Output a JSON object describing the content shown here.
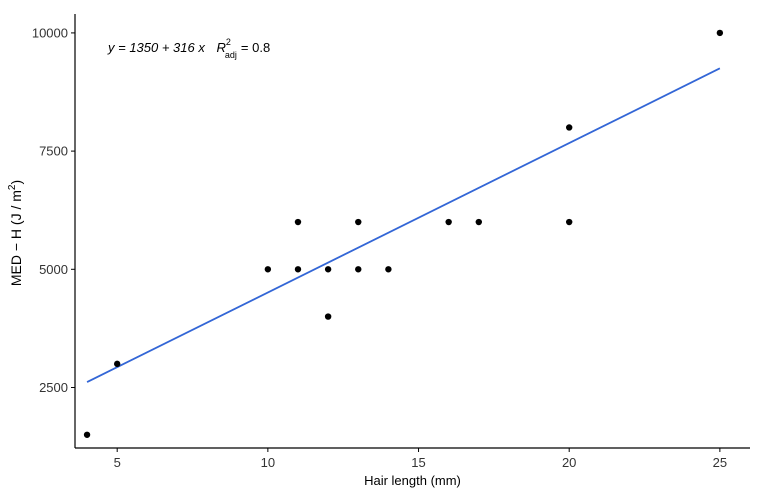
{
  "chart_data": {
    "type": "scatter",
    "title": "",
    "xlabel": "Hair length (mm)",
    "ylabel": "MED − H (J / m²)",
    "ylabel_parts": {
      "main": "MED − H (J / m",
      "sup": "2",
      "close": ")"
    },
    "xlim": [
      3.6,
      26.0
    ],
    "ylim": [
      1220,
      10400
    ],
    "x_ticks": [
      5,
      10,
      15,
      20,
      25
    ],
    "y_ticks": [
      2500,
      5000,
      7500,
      10000
    ],
    "grid": false,
    "legend": "none",
    "points": [
      {
        "x": 4,
        "y": 1500
      },
      {
        "x": 5,
        "y": 3000
      },
      {
        "x": 10,
        "y": 5000
      },
      {
        "x": 11,
        "y": 5000
      },
      {
        "x": 11,
        "y": 6000
      },
      {
        "x": 12,
        "y": 4000
      },
      {
        "x": 12,
        "y": 5000
      },
      {
        "x": 13,
        "y": 5000
      },
      {
        "x": 13,
        "y": 6000
      },
      {
        "x": 14,
        "y": 5000
      },
      {
        "x": 16,
        "y": 6000
      },
      {
        "x": 17,
        "y": 6000
      },
      {
        "x": 20,
        "y": 6000
      },
      {
        "x": 20,
        "y": 8000
      },
      {
        "x": 25,
        "y": 10000
      }
    ],
    "regression": {
      "intercept": 1350,
      "slope": 316,
      "x_from": 4,
      "x_to": 25
    },
    "annotation": {
      "equation": "y = 1350 + 316 x",
      "r_symbol": "R",
      "r_sup": "2",
      "r_sub": "adj",
      "r_value": "= 0.8"
    },
    "colors": {
      "points": "#000000",
      "line": "#3366d6",
      "axis": "#000000",
      "text": "#000000"
    }
  }
}
